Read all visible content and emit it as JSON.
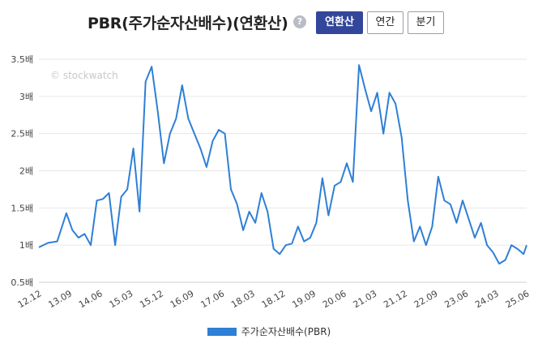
{
  "header": {
    "title": "PBR(주가순자산배수)(연환산)",
    "help_glyph": "?",
    "buttons": [
      {
        "label": "연환산",
        "active": true
      },
      {
        "label": "연간",
        "active": false
      },
      {
        "label": "분기",
        "active": false
      }
    ]
  },
  "watermark": "© stockwatch",
  "colors": {
    "line": "#2e7fd6",
    "active_button": "#33469a",
    "grid": "#e6e6e6"
  },
  "chart_data": {
    "type": "line",
    "title": "PBR(주가순자산배수)(연환산)",
    "xlabel": "",
    "ylabel": "",
    "ylim": [
      0.5,
      3.5
    ],
    "yticks": [
      0.5,
      1,
      1.5,
      2,
      2.5,
      3,
      3.5
    ],
    "ytick_labels": [
      "0.5배",
      "1배",
      "1.5배",
      "2배",
      "2.5배",
      "3배",
      "3.5배"
    ],
    "x_tick_labels": [
      "12.12",
      "13.09",
      "14.06",
      "15.03",
      "15.12",
      "16.09",
      "17.06",
      "18.03",
      "18.12",
      "19.09",
      "20.06",
      "21.03",
      "21.12",
      "22.09",
      "23.06",
      "24.03",
      "25.06"
    ],
    "grid": true,
    "legend_position": "bottom",
    "series": [
      {
        "name": "주가순자산배수(PBR)",
        "x": [
          0,
          0.3,
          0.6,
          0.9,
          1.1,
          1.3,
          1.5,
          1.7,
          1.9,
          2.1,
          2.3,
          2.5,
          2.7,
          2.9,
          3.1,
          3.3,
          3.5,
          3.7,
          3.9,
          4.1,
          4.3,
          4.5,
          4.7,
          4.9,
          5.1,
          5.3,
          5.5,
          5.7,
          5.9,
          6.1,
          6.3,
          6.5,
          6.7,
          6.9,
          7.1,
          7.3,
          7.5,
          7.7,
          7.9,
          8.1,
          8.3,
          8.5,
          8.7,
          8.9,
          9.1,
          9.3,
          9.5,
          9.7,
          9.9,
          10.1,
          10.3,
          10.5,
          10.7,
          10.9,
          11.1,
          11.3,
          11.5,
          11.7,
          11.9,
          12.1,
          12.3,
          12.5,
          12.7,
          12.9,
          13.1,
          13.3,
          13.5,
          13.7,
          13.9,
          14.1,
          14.3,
          14.5,
          14.7,
          14.9,
          15.1,
          15.3,
          15.5,
          15.7,
          15.9,
          16.0
        ],
        "values": [
          0.97,
          1.03,
          1.05,
          1.43,
          1.2,
          1.1,
          1.15,
          1.0,
          1.6,
          1.62,
          1.7,
          1.0,
          1.65,
          1.75,
          2.3,
          1.45,
          3.2,
          3.4,
          2.8,
          2.1,
          2.5,
          2.7,
          3.15,
          2.7,
          2.5,
          2.3,
          2.05,
          2.4,
          2.55,
          2.5,
          1.75,
          1.55,
          1.2,
          1.45,
          1.3,
          1.7,
          1.45,
          0.95,
          0.88,
          1.0,
          1.02,
          1.25,
          1.05,
          1.1,
          1.3,
          1.9,
          1.4,
          1.8,
          1.85,
          2.1,
          1.85,
          3.42,
          3.1,
          2.8,
          3.05,
          2.5,
          3.05,
          2.9,
          2.45,
          1.6,
          1.05,
          1.25,
          1.0,
          1.25,
          1.92,
          1.6,
          1.55,
          1.3,
          1.6,
          1.35,
          1.1,
          1.3,
          1.0,
          0.9,
          0.75,
          0.8,
          1.0,
          0.95,
          0.88,
          1.0
        ]
      }
    ]
  }
}
